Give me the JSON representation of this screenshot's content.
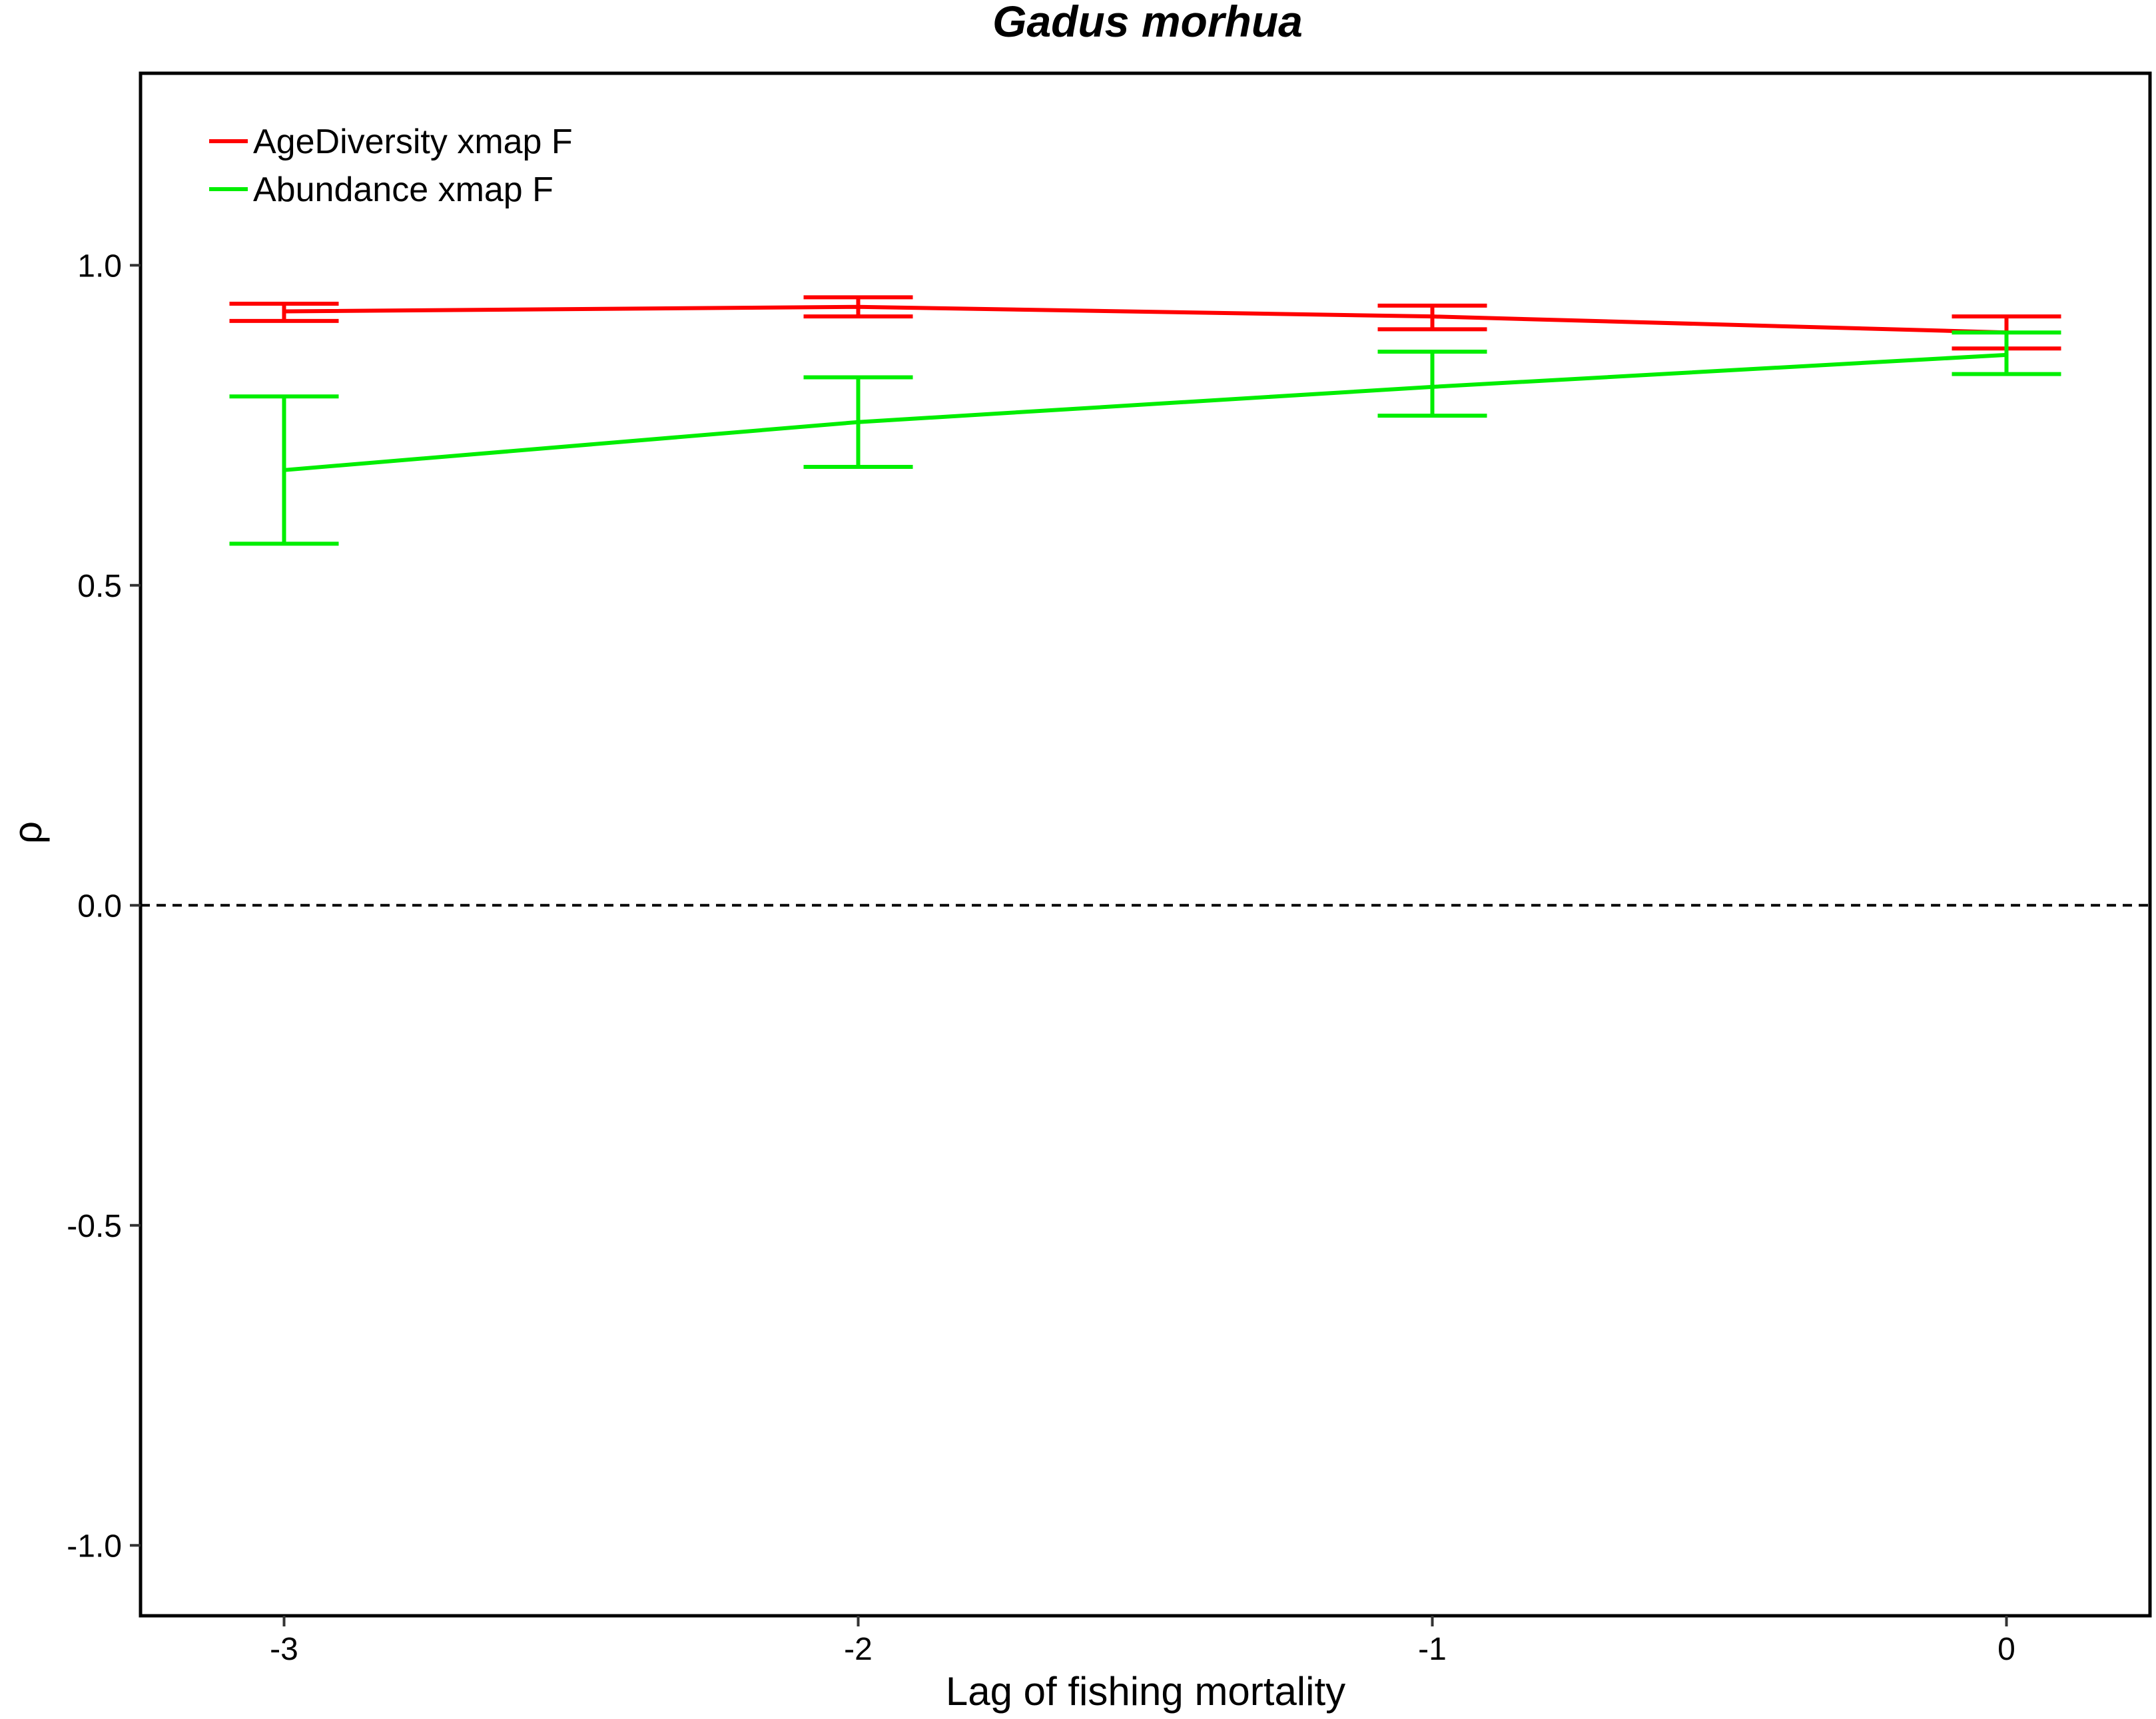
{
  "chart_data": {
    "type": "line",
    "title": "Gadus morhua",
    "xlabel": "Lag of fishing mortality",
    "ylabel": "ρ",
    "x": [
      -3,
      -2,
      -1,
      0
    ],
    "x_ticks": [
      "-3",
      "-2",
      "-1",
      "0"
    ],
    "y_ticks": [
      "-1.0",
      "-0.5",
      "0.0",
      "0.5",
      "1.0"
    ],
    "xlim": [
      -3.25,
      0.25
    ],
    "ylim": [
      -1.11,
      1.3
    ],
    "reference_line": {
      "y": 0,
      "style": "dashed",
      "color": "#000000"
    },
    "legend_position": "top-left",
    "grid": false,
    "series": [
      {
        "name": "AgeDiversity xmap F",
        "color": "#ff0000",
        "values": [
          0.928,
          0.935,
          0.92,
          0.895
        ],
        "lower": [
          0.913,
          0.92,
          0.9,
          0.87
        ],
        "upper": [
          0.94,
          0.95,
          0.937,
          0.92
        ]
      },
      {
        "name": "Abundance xmap F",
        "color": "#00ee00",
        "values": [
          0.68,
          0.755,
          0.81,
          0.86
        ],
        "lower": [
          0.565,
          0.685,
          0.765,
          0.83
        ],
        "upper": [
          0.795,
          0.825,
          0.865,
          0.895
        ]
      }
    ]
  }
}
